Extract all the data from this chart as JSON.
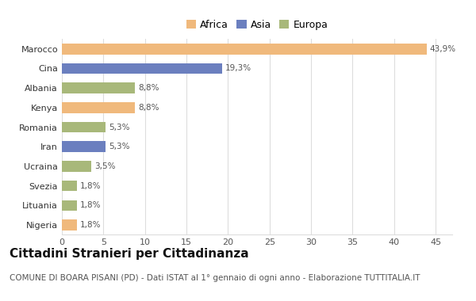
{
  "categories": [
    "Marocco",
    "Cina",
    "Albania",
    "Kenya",
    "Romania",
    "Iran",
    "Ucraina",
    "Svezia",
    "Lituania",
    "Nigeria"
  ],
  "values": [
    43.9,
    19.3,
    8.8,
    8.8,
    5.3,
    5.3,
    3.5,
    1.8,
    1.8,
    1.8
  ],
  "labels": [
    "43,9%",
    "19,3%",
    "8,8%",
    "8,8%",
    "5,3%",
    "5,3%",
    "3,5%",
    "1,8%",
    "1,8%",
    "1,8%"
  ],
  "colors": [
    "#F0B97C",
    "#6B7FBF",
    "#A8B87A",
    "#F0B97C",
    "#A8B87A",
    "#6B7FBF",
    "#A8B87A",
    "#A8B87A",
    "#A8B87A",
    "#F0B97C"
  ],
  "legend_labels": [
    "Africa",
    "Asia",
    "Europa"
  ],
  "legend_colors": [
    "#F0B97C",
    "#6B7FBF",
    "#A8B87A"
  ],
  "title": "Cittadini Stranieri per Cittadinanza",
  "subtitle": "COMUNE DI BOARA PISANI (PD) - Dati ISTAT al 1° gennaio di ogni anno - Elaborazione TUTTITALIA.IT",
  "xlim": [
    0,
    47
  ],
  "xticks": [
    0,
    5,
    10,
    15,
    20,
    25,
    30,
    35,
    40,
    45
  ],
  "background_color": "#ffffff",
  "grid_color": "#dddddd",
  "bar_height": 0.55,
  "title_fontsize": 11,
  "subtitle_fontsize": 7.5,
  "label_fontsize": 7.5,
  "tick_fontsize": 8,
  "legend_fontsize": 9
}
